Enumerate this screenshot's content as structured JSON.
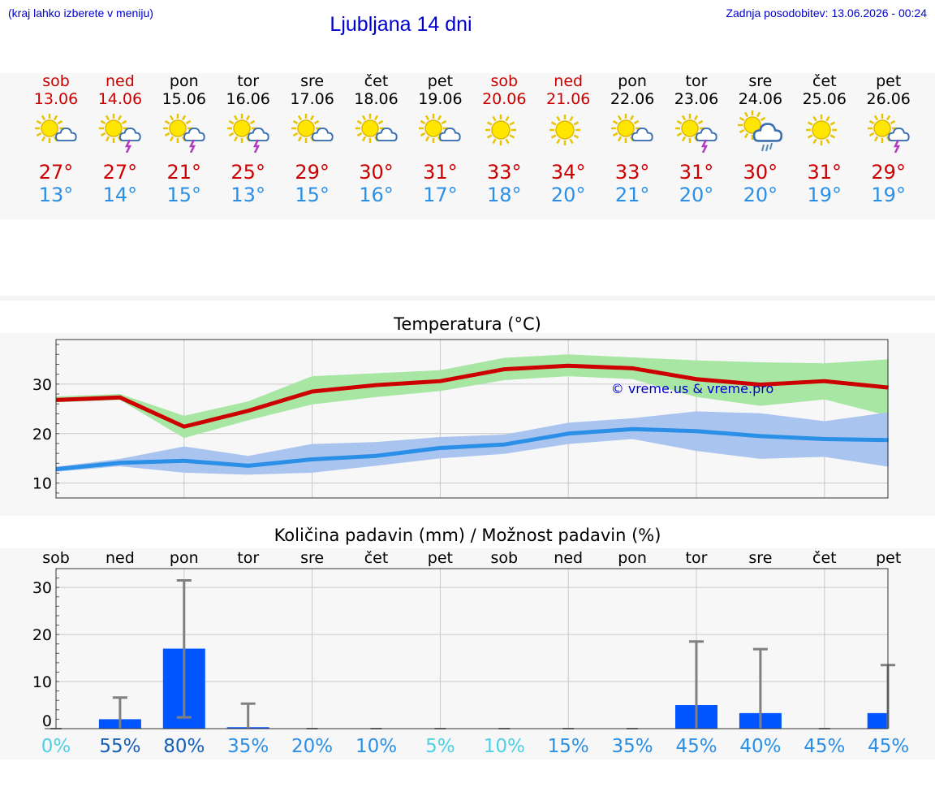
{
  "header": {
    "left_note": "(kraj lahko izberete v meniju)",
    "title": "Ljubljana 14 dni",
    "updated": "Zadnja posodobitev: 13.06.2026 - 00:24"
  },
  "colors": {
    "weekend": "#cc0000",
    "max_temp": "#cc0000",
    "min_temp": "#2a8fe6",
    "max_band": "#a8e6a3",
    "min_band": "#aac4f0",
    "bar": "#0055ff",
    "link": "#0000cc"
  },
  "days": [
    {
      "name": "sob",
      "date": "13.06",
      "weekend": true,
      "icon": "sun-cloud-icon",
      "max": "27°",
      "min": "13°"
    },
    {
      "name": "ned",
      "date": "14.06",
      "weekend": true,
      "icon": "sun-storm-icon",
      "max": "27°",
      "min": "14°"
    },
    {
      "name": "pon",
      "date": "15.06",
      "weekend": false,
      "icon": "sun-storm-icon",
      "max": "21°",
      "min": "15°"
    },
    {
      "name": "tor",
      "date": "16.06",
      "weekend": false,
      "icon": "sun-storm-icon",
      "max": "25°",
      "min": "13°"
    },
    {
      "name": "sre",
      "date": "17.06",
      "weekend": false,
      "icon": "sun-cloud-icon",
      "max": "29°",
      "min": "15°"
    },
    {
      "name": "čet",
      "date": "18.06",
      "weekend": false,
      "icon": "sun-cloud-icon",
      "max": "30°",
      "min": "16°"
    },
    {
      "name": "pet",
      "date": "19.06",
      "weekend": false,
      "icon": "sun-cloud-icon",
      "max": "31°",
      "min": "17°"
    },
    {
      "name": "sob",
      "date": "20.06",
      "weekend": true,
      "icon": "sun-icon",
      "max": "33°",
      "min": "18°"
    },
    {
      "name": "ned",
      "date": "21.06",
      "weekend": true,
      "icon": "sun-icon",
      "max": "34°",
      "min": "20°"
    },
    {
      "name": "pon",
      "date": "22.06",
      "weekend": false,
      "icon": "sun-cloud-icon",
      "max": "33°",
      "min": "21°"
    },
    {
      "name": "tor",
      "date": "23.06",
      "weekend": false,
      "icon": "sun-storm-icon",
      "max": "31°",
      "min": "20°"
    },
    {
      "name": "sre",
      "date": "24.06",
      "weekend": false,
      "icon": "sun-rain-icon",
      "max": "30°",
      "min": "20°"
    },
    {
      "name": "čet",
      "date": "25.06",
      "weekend": false,
      "icon": "sun-icon",
      "max": "31°",
      "min": "19°"
    },
    {
      "name": "pet",
      "date": "26.06",
      "weekend": false,
      "icon": "sun-storm-icon",
      "max": "29°",
      "min": "19°"
    }
  ],
  "chart_data": [
    {
      "type": "line",
      "title": "Temperatura (°C)",
      "watermark": "© vreme.us & vreme.pro",
      "ylim": [
        7,
        39
      ],
      "yticks": [
        10,
        20,
        30
      ],
      "grid": true,
      "x": [
        0,
        1,
        2,
        3,
        4,
        5,
        6,
        7,
        8,
        9,
        10,
        11,
        12,
        13
      ],
      "series": [
        {
          "values": [
            26.8,
            27.3,
            21.4,
            24.6,
            28.5,
            29.8,
            30.6,
            33.0,
            33.7,
            33.2,
            31.0,
            29.9,
            30.6,
            29.3
          ]
        },
        {
          "values": [
            12.8,
            14.1,
            14.5,
            13.5,
            14.8,
            15.5,
            17.1,
            17.8,
            20.0,
            20.9,
            20.5,
            19.5,
            18.9,
            18.7
          ]
        }
      ],
      "bands": [
        {
          "lower": [
            26.3,
            26.8,
            19.1,
            22.7,
            25.9,
            27.4,
            28.6,
            30.8,
            31.6,
            31.0,
            27.4,
            25.6,
            26.9,
            23.6
          ],
          "upper": [
            27.5,
            28.0,
            23.6,
            26.5,
            31.6,
            32.2,
            32.8,
            35.3,
            36.0,
            35.4,
            34.8,
            34.4,
            34.2,
            35.0
          ]
        },
        {
          "lower": [
            12.3,
            13.4,
            12.1,
            11.7,
            12.1,
            13.5,
            15.0,
            15.9,
            17.9,
            18.9,
            16.5,
            14.9,
            15.3,
            13.3
          ],
          "upper": [
            13.3,
            14.9,
            17.4,
            15.5,
            17.9,
            18.3,
            19.3,
            19.8,
            22.2,
            23.1,
            24.5,
            24.1,
            22.5,
            24.3
          ]
        }
      ]
    },
    {
      "type": "bar",
      "title": "Količina padavin (mm) / Možnost padavin (%)",
      "categories": [
        "sob",
        "ned",
        "pon",
        "tor",
        "sre",
        "čet",
        "pet",
        "sob",
        "ned",
        "pon",
        "tor",
        "sre",
        "čet",
        "pet"
      ],
      "ylim": [
        0,
        34
      ],
      "yticks": [
        0,
        10,
        20,
        30
      ],
      "values": [
        0,
        2.0,
        17.0,
        0.3,
        0,
        0,
        0,
        0,
        0,
        0,
        5.0,
        3.3,
        0,
        3.3
      ],
      "error_high": [
        0,
        6.6,
        31.5,
        5.3,
        0,
        0,
        0,
        0,
        0,
        0,
        18.5,
        16.9,
        0,
        13.5
      ],
      "error_low": [
        0,
        0,
        2.4,
        0,
        0,
        0,
        0,
        0,
        0,
        0,
        0,
        0,
        0,
        0
      ],
      "probability": [
        "0%",
        "55%",
        "80%",
        "35%",
        "20%",
        "10%",
        "5%",
        "10%",
        "15%",
        "35%",
        "45%",
        "40%",
        "45%",
        "45%"
      ],
      "probability_colors": [
        "#4fd0e6",
        "#1560b8",
        "#1560b8",
        "#2a8fe6",
        "#2a8fe6",
        "#2a8fe6",
        "#4fd0e6",
        "#4fd0e6",
        "#2a8fe6",
        "#2a8fe6",
        "#2a8fe6",
        "#2a8fe6",
        "#2a8fe6",
        "#2a8fe6"
      ]
    }
  ]
}
